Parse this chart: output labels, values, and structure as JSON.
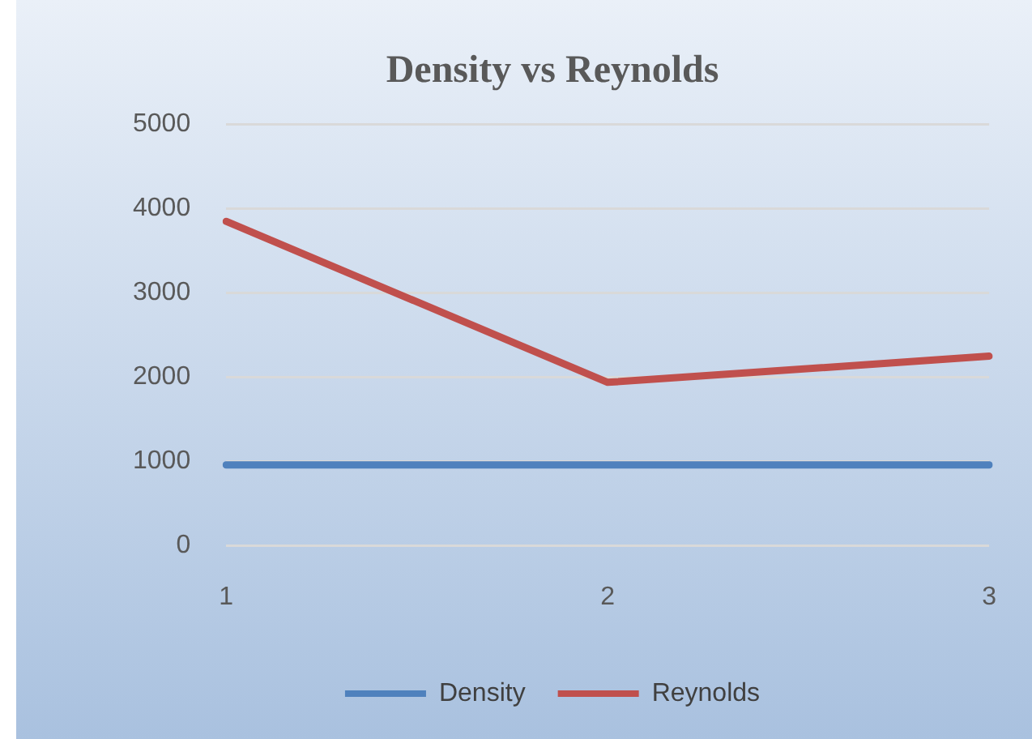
{
  "chart_data": {
    "type": "line",
    "title": "Density vs Reynolds",
    "categories": [
      "1",
      "2",
      "3"
    ],
    "series": [
      {
        "name": "Density",
        "color": "#4f81bd",
        "values": [
          960,
          960,
          960
        ]
      },
      {
        "name": "Reynolds",
        "color": "#c0504d",
        "values": [
          3850,
          1940,
          2250
        ]
      }
    ],
    "ylim": [
      0,
      5000
    ],
    "yticks": [
      0,
      1000,
      2000,
      3000,
      4000,
      5000
    ],
    "grid": "y",
    "legend": "bottom",
    "marker": "none",
    "line_style": "solid"
  }
}
